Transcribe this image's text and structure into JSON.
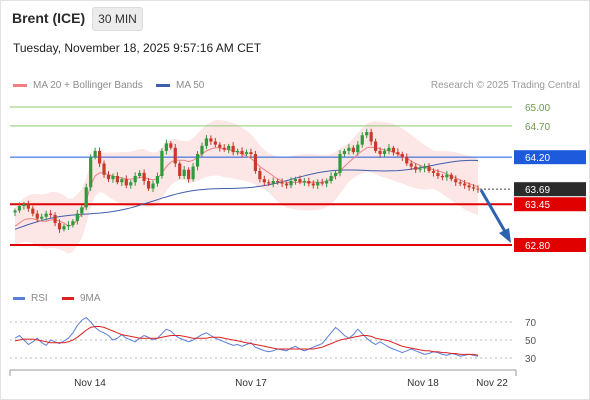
{
  "header": {
    "instrument": "Brent (ICE)",
    "timeframe_button": "30 MIN",
    "datetime": "Tuesday, November 18, 2025 9:57:16 AM CET"
  },
  "legend": {
    "ma20_label": "MA 20 + Bollinger Bands",
    "ma50_label": "MA 50",
    "credit": "Research © 2025 Trading Central"
  },
  "indicator_legend": {
    "rsi_label": "RSI",
    "ma9_label": "9MA"
  },
  "colors": {
    "ma20": "#f08080",
    "bollinger_fill": "#fde2e2",
    "ma50": "#3f5eab",
    "resistance_green": "#8cc870",
    "pivot_blue": "#1e5adc",
    "support_red": "#e00000",
    "last_price_bg": "#2b2b2b",
    "rsi": "#5a7fd8",
    "rsi_ma": "#dd2222",
    "arrow": "#2d62b0"
  },
  "chart_data": [
    {
      "type": "line",
      "title": "",
      "subtitle": "Brent (ICE) 30 MIN candlesticks",
      "x_tick_labels": [
        "Nov 14",
        "Nov 17",
        "Nov 18",
        "Nov 22"
      ],
      "ylim": [
        62.6,
        65.2
      ],
      "price_levels": [
        {
          "value": 65.0,
          "label": "65.00",
          "kind": "resistance"
        },
        {
          "value": 64.7,
          "label": "64.70",
          "kind": "resistance"
        },
        {
          "value": 64.2,
          "label": "64.20",
          "kind": "pivot"
        },
        {
          "value": 63.69,
          "label": "63.69",
          "kind": "last"
        },
        {
          "value": 63.45,
          "label": "63.45",
          "kind": "support"
        },
        {
          "value": 62.8,
          "label": "62.80",
          "kind": "support"
        }
      ],
      "close_series": [
        63.35,
        63.42,
        63.45,
        63.38,
        63.3,
        63.22,
        63.25,
        63.3,
        63.28,
        63.15,
        63.05,
        63.1,
        63.12,
        63.18,
        63.3,
        63.4,
        63.72,
        64.2,
        64.3,
        64.1,
        63.92,
        63.85,
        63.9,
        63.8,
        63.85,
        63.75,
        63.8,
        63.9,
        63.95,
        63.82,
        63.7,
        63.78,
        63.9,
        64.3,
        64.42,
        64.35,
        64.1,
        63.9,
        64.0,
        63.85,
        64.05,
        64.25,
        64.38,
        64.5,
        64.45,
        64.4,
        64.35,
        64.32,
        64.38,
        64.28,
        64.3,
        64.25,
        64.28,
        64.25,
        63.98,
        63.85,
        63.8,
        63.78,
        63.82,
        63.8,
        63.78,
        63.75,
        63.82,
        63.85,
        63.8,
        63.82,
        63.78,
        63.75,
        63.8,
        63.78,
        63.82,
        63.9,
        63.95,
        64.25,
        64.3,
        64.35,
        64.28,
        64.4,
        64.55,
        64.6,
        64.45,
        64.3,
        64.25,
        64.3,
        64.35,
        64.28,
        64.25,
        64.2,
        64.1,
        64.05,
        64.0,
        64.02,
        64.05,
        63.98,
        63.95,
        63.9,
        63.88,
        63.92,
        63.85,
        63.8,
        63.78,
        63.75,
        63.72,
        63.7,
        63.69
      ],
      "ma20": [
        63.1,
        63.15,
        63.2,
        63.22,
        63.22,
        63.2,
        63.18,
        63.18,
        63.2,
        63.2,
        63.18,
        63.15,
        63.1,
        63.12,
        63.2,
        63.3,
        63.5,
        63.75,
        63.9,
        63.95,
        63.95,
        63.92,
        63.9,
        63.88,
        63.87,
        63.85,
        63.85,
        63.86,
        63.88,
        63.88,
        63.85,
        63.84,
        63.86,
        63.95,
        64.05,
        64.12,
        64.15,
        64.15,
        64.15,
        64.13,
        64.15,
        64.2,
        64.25,
        64.3,
        64.33,
        64.35,
        64.35,
        64.33,
        64.32,
        64.3,
        64.28,
        64.25,
        64.22,
        64.18,
        64.12,
        64.05,
        64.0,
        63.95,
        63.9,
        63.85,
        63.82,
        63.8,
        63.8,
        63.8,
        63.8,
        63.8,
        63.8,
        63.8,
        63.8,
        63.8,
        63.82,
        63.85,
        63.9,
        63.98,
        64.05,
        64.12,
        64.18,
        64.25,
        64.3,
        64.35,
        64.36,
        64.35,
        64.33,
        64.32,
        64.3,
        64.28,
        64.25,
        64.22,
        64.18,
        64.14,
        64.1,
        64.07,
        64.04,
        64.02,
        64.0,
        63.98,
        63.96,
        63.93,
        63.9,
        63.87,
        63.84,
        63.8,
        63.78,
        63.75,
        63.73
      ],
      "ma50_start": 63.05,
      "ma50_end": 64.1,
      "annotation": "forecast arrow pointing down toward 62.80"
    },
    {
      "type": "line",
      "title": "",
      "series_names": [
        "RSI",
        "9MA"
      ],
      "y_ticks": [
        70,
        50,
        30
      ],
      "ylim": [
        20,
        80
      ],
      "rsi": [
        52,
        55,
        50,
        45,
        48,
        52,
        47,
        44,
        50,
        48,
        46,
        49,
        52,
        58,
        66,
        72,
        75,
        70,
        64,
        60,
        58,
        55,
        50,
        52,
        56,
        52,
        50,
        48,
        52,
        55,
        53,
        50,
        52,
        57,
        62,
        60,
        55,
        52,
        50,
        48,
        50,
        53,
        56,
        58,
        55,
        52,
        50,
        48,
        46,
        44,
        45,
        43,
        45,
        47,
        42,
        40,
        38,
        37,
        38,
        40,
        39,
        38,
        41,
        43,
        40,
        38,
        40,
        42,
        44,
        46,
        52,
        58,
        64,
        60,
        55,
        52,
        56,
        62,
        57,
        52,
        48,
        45,
        48,
        45,
        42,
        40,
        38,
        36,
        38,
        40,
        38,
        36,
        34,
        35,
        37,
        36,
        34,
        33,
        35,
        34,
        32,
        33,
        34,
        33,
        32
      ],
      "rsi_ma": [
        49,
        50,
        51,
        51,
        51,
        50,
        49,
        48,
        47,
        47,
        47,
        47,
        48,
        50,
        53,
        57,
        61,
        64,
        65,
        65,
        64,
        62,
        60,
        58,
        56,
        55,
        54,
        53,
        52,
        52,
        52,
        52,
        52,
        53,
        54,
        55,
        55,
        55,
        54,
        53,
        52,
        52,
        52,
        52,
        53,
        53,
        53,
        52,
        51,
        50,
        49,
        48,
        47,
        46,
        45,
        44,
        43,
        42,
        41,
        40,
        40,
        40,
        40,
        40,
        40,
        40,
        40,
        40,
        41,
        42,
        44,
        46,
        48,
        50,
        51,
        52,
        53,
        54,
        55,
        55,
        54,
        52,
        51,
        50,
        49,
        47,
        45,
        43,
        42,
        41,
        40,
        39,
        38,
        38,
        37,
        37,
        36,
        36,
        35,
        35,
        34,
        34,
        34,
        34,
        33
      ]
    }
  ]
}
